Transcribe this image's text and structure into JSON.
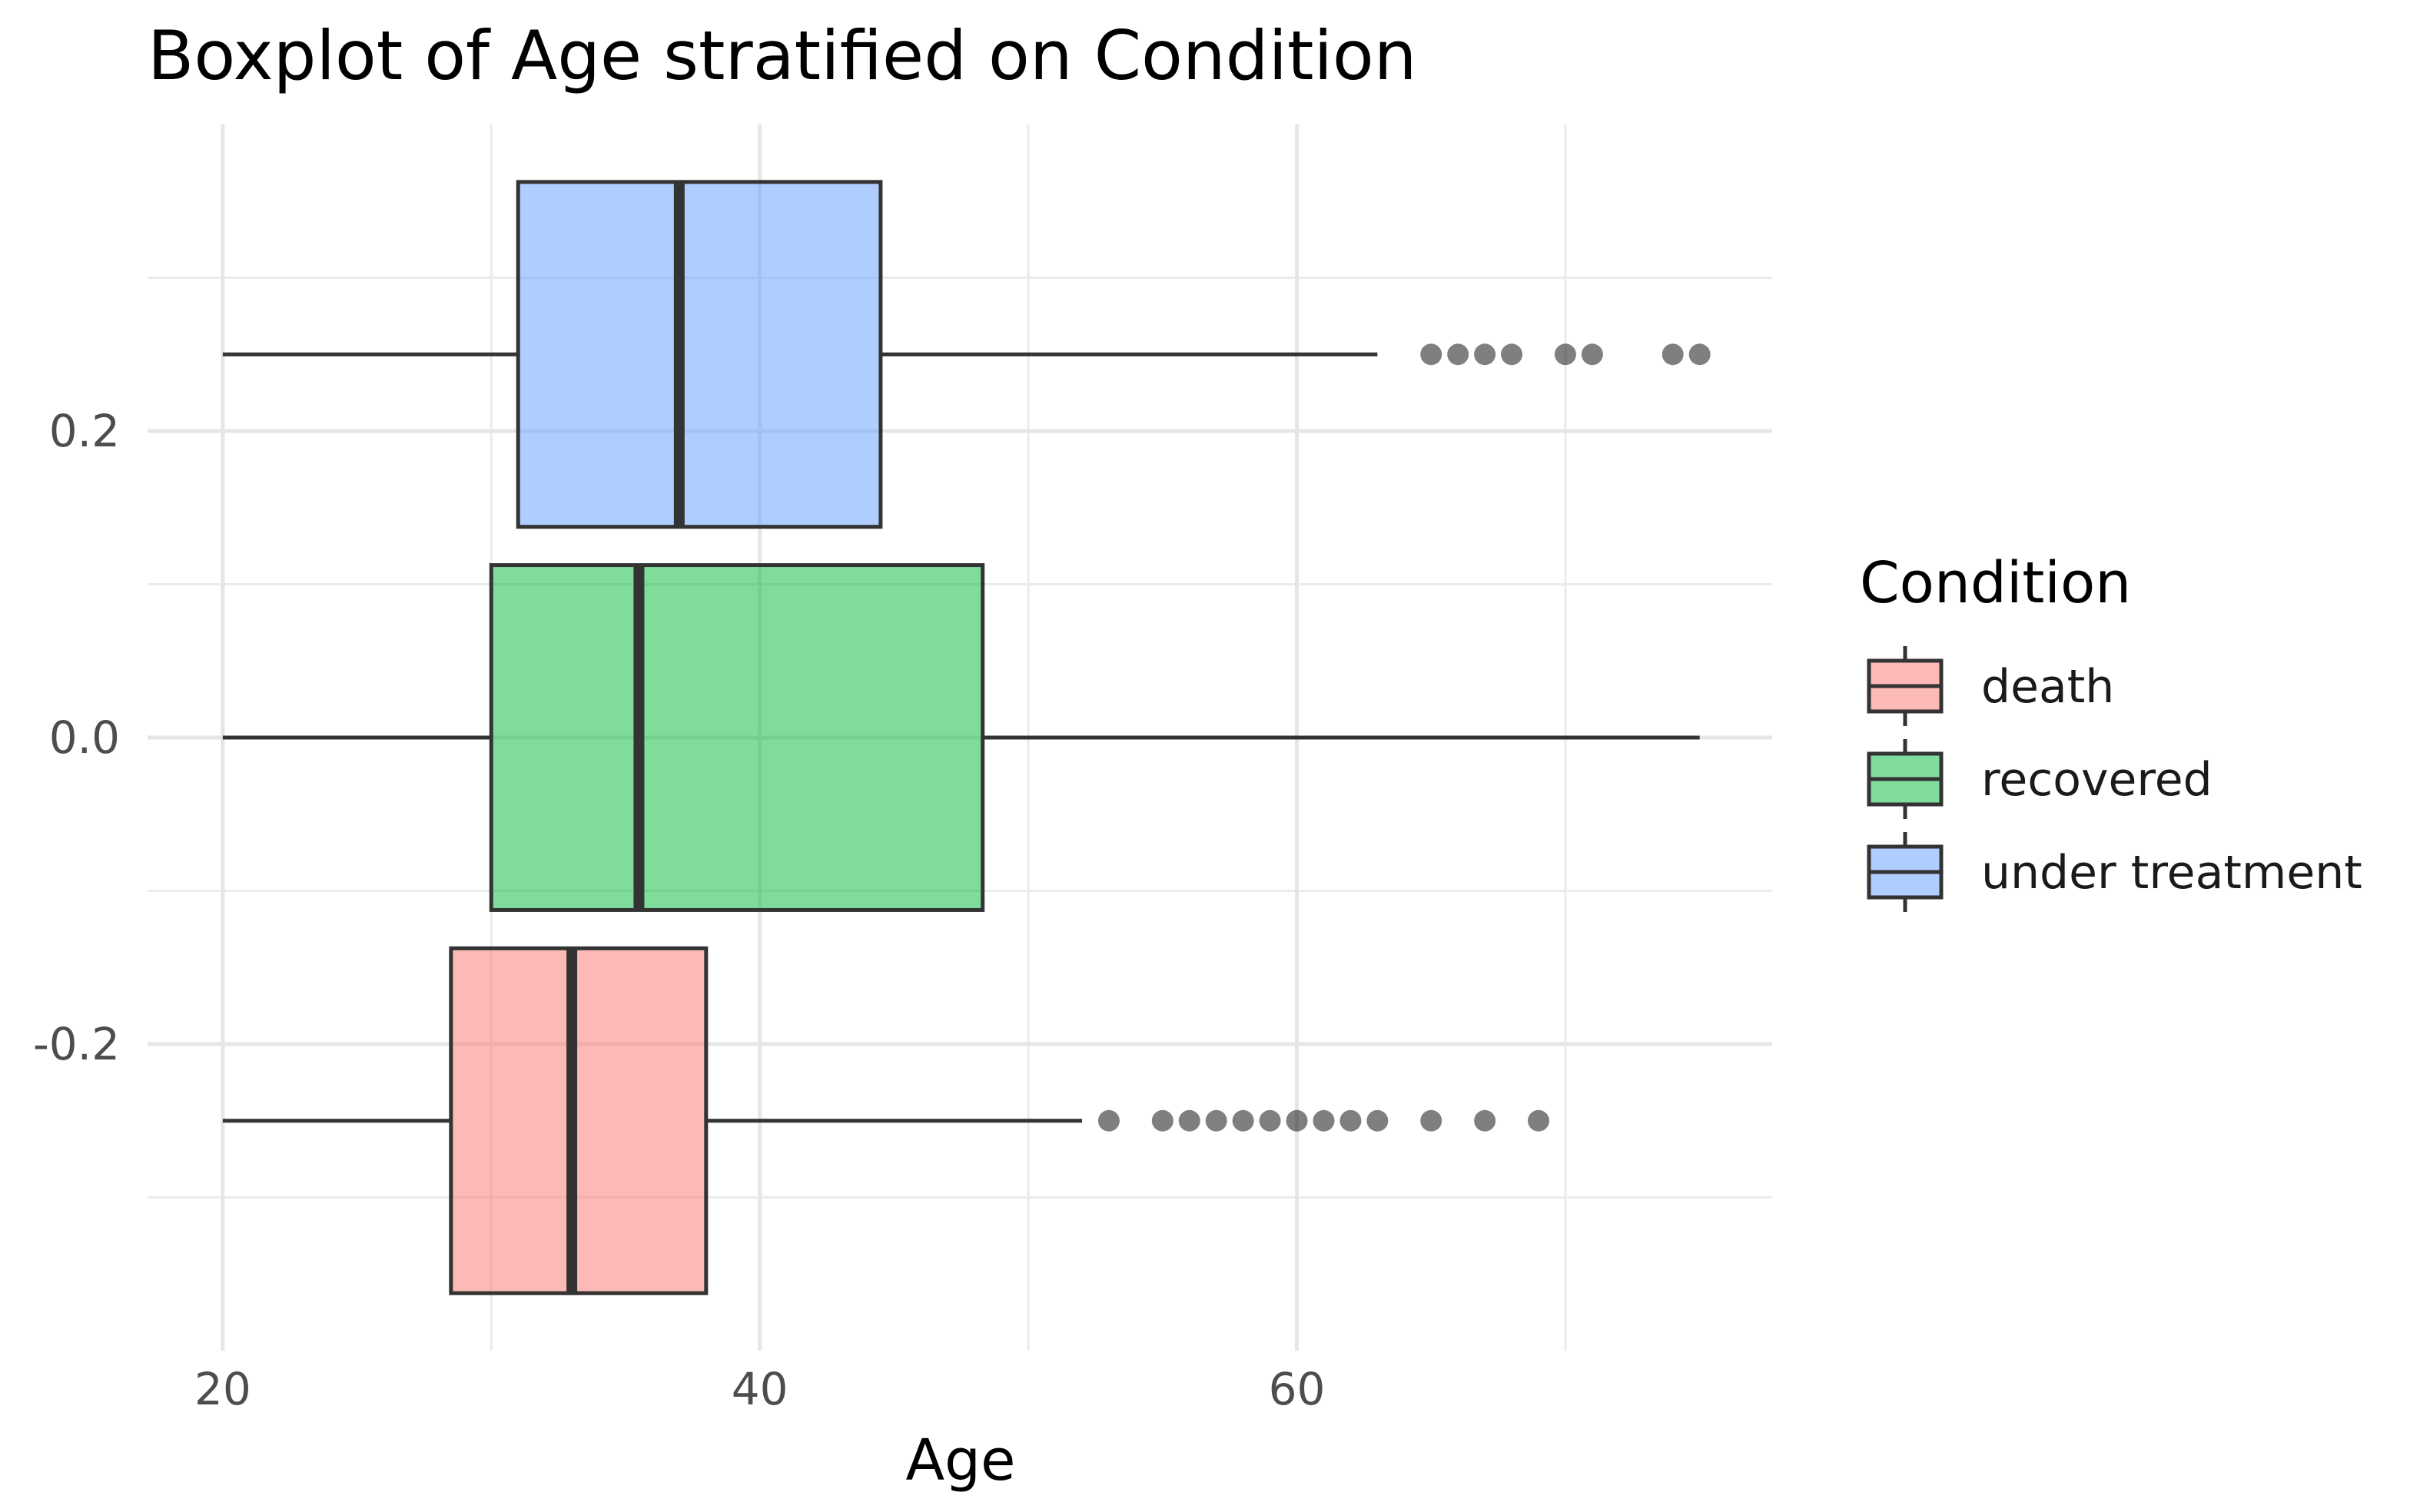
{
  "chart_data": {
    "type": "boxplot",
    "title": "Boxplot of Age stratified on Condition",
    "xlabel": "Age",
    "ylabel": "",
    "orientation": "horizontal",
    "xlim": [
      17.2,
      77.7
    ],
    "ylim": [
      -0.4,
      0.4
    ],
    "x_ticks": [
      20,
      40,
      60
    ],
    "y_ticks": [
      -0.2,
      0.0,
      0.2
    ],
    "y_tick_labels": [
      "-0.2",
      "0.0",
      "0.2"
    ],
    "grid": true,
    "legend": {
      "title": "Condition",
      "position": "right",
      "entries": [
        "death",
        "recovered",
        "under treatment"
      ]
    },
    "series": [
      {
        "name": "death",
        "color": "#F8766D",
        "center": -0.25,
        "whisker_low": 20,
        "q1": 28.5,
        "median": 33,
        "q3": 38,
        "whisker_high": 52,
        "outliers": [
          53,
          55,
          56,
          57,
          58,
          59,
          60,
          61,
          62,
          63,
          65,
          67,
          69
        ]
      },
      {
        "name": "recovered",
        "color": "#00BA38",
        "center": 0.0,
        "whisker_low": 20,
        "q1": 30,
        "median": 35.5,
        "q3": 48.3,
        "whisker_high": 75,
        "outliers": []
      },
      {
        "name": "under treatment",
        "color": "#619CFF",
        "center": 0.25,
        "whisker_low": 20,
        "q1": 31,
        "median": 37,
        "q3": 44.5,
        "whisker_high": 63,
        "outliers": [
          65,
          66,
          67,
          68,
          70,
          71,
          74,
          75
        ]
      }
    ]
  }
}
